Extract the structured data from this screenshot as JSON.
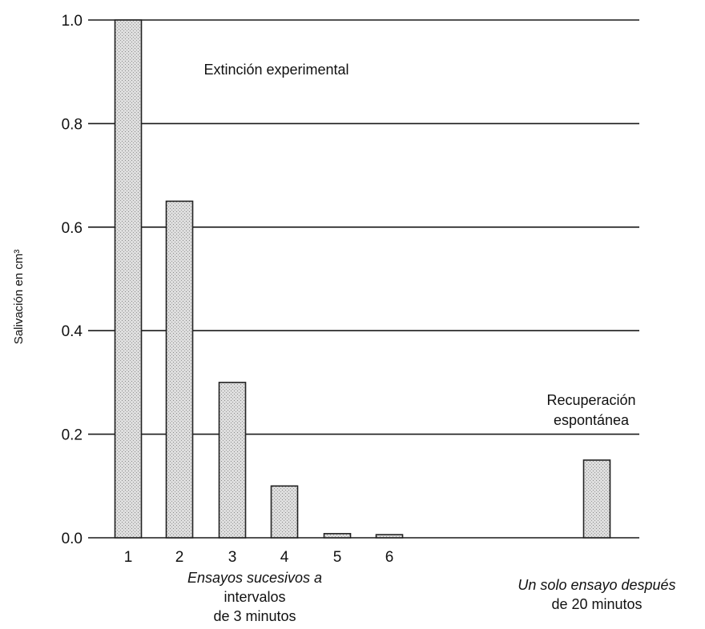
{
  "chart_data": {
    "type": "bar",
    "ylabel": "Salivación en cm³",
    "ylim": [
      0,
      1.0
    ],
    "yticks": [
      "0.0",
      "0.2",
      "0.4",
      "0.6",
      "0.8",
      "1.0"
    ],
    "grid": true,
    "bar_fill": "#d4d4d4",
    "groups": [
      {
        "xlabel_lines": [
          "Ensayos sucesivos a",
          "intervalos",
          "de 3 minutos"
        ],
        "categories": [
          "1",
          "2",
          "3",
          "4",
          "5",
          "6"
        ],
        "values": [
          1.0,
          0.65,
          0.3,
          0.1,
          0.008,
          0.006
        ],
        "annotation": "Extinción experimental"
      },
      {
        "xlabel_lines": [
          "Un solo ensayo después",
          "de 20 minutos"
        ],
        "categories": [
          ""
        ],
        "values": [
          0.15
        ],
        "annotation_lines": [
          "Recuperación",
          "espontánea"
        ]
      }
    ]
  }
}
